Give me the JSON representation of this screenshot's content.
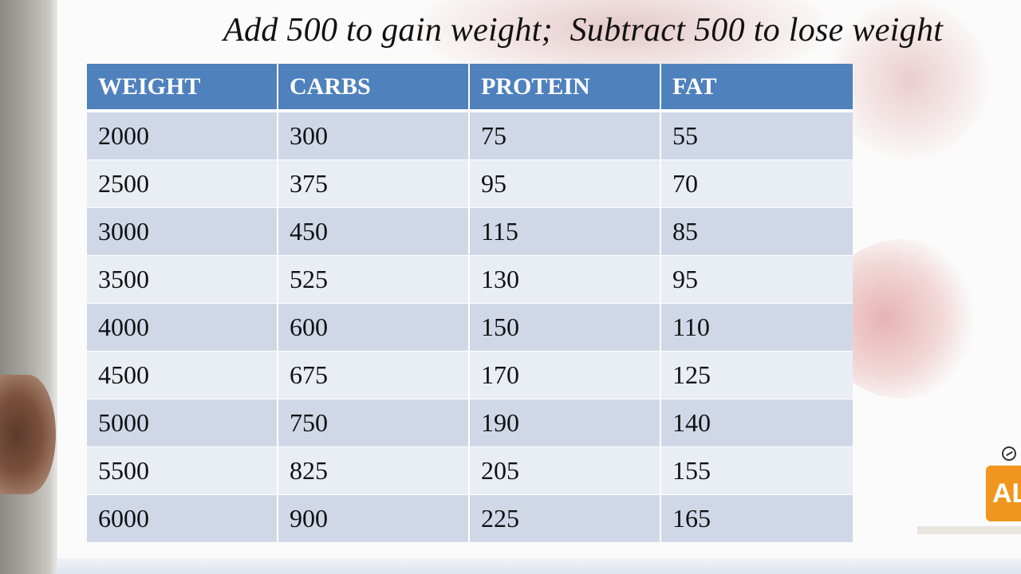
{
  "header": {
    "instruction": "Add 500 to gain weight;  Subtract 500 to lose weight"
  },
  "table": {
    "columns": [
      "WEIGHT",
      "CARBS",
      "PROTEIN",
      "FAT"
    ],
    "rows": [
      [
        "2000",
        "300",
        "75",
        "55"
      ],
      [
        "2500",
        "375",
        "95",
        "70"
      ],
      [
        "3000",
        "450",
        "115",
        "85"
      ],
      [
        "3500",
        "525",
        "130",
        "95"
      ],
      [
        "4000",
        "600",
        "150",
        "110"
      ],
      [
        "4500",
        "675",
        "170",
        "125"
      ],
      [
        "5000",
        "750",
        "190",
        "140"
      ],
      [
        "5500",
        "825",
        "205",
        "155"
      ],
      [
        "6000",
        "900",
        "225",
        "165"
      ]
    ]
  },
  "badge": {
    "label": "AL",
    "icon": "clock-icon",
    "color": "#f0961e"
  },
  "colors": {
    "header_fill": "#4f81bd",
    "row_band_dark": "#d0d8e8",
    "row_band_light": "#e9edf4"
  }
}
